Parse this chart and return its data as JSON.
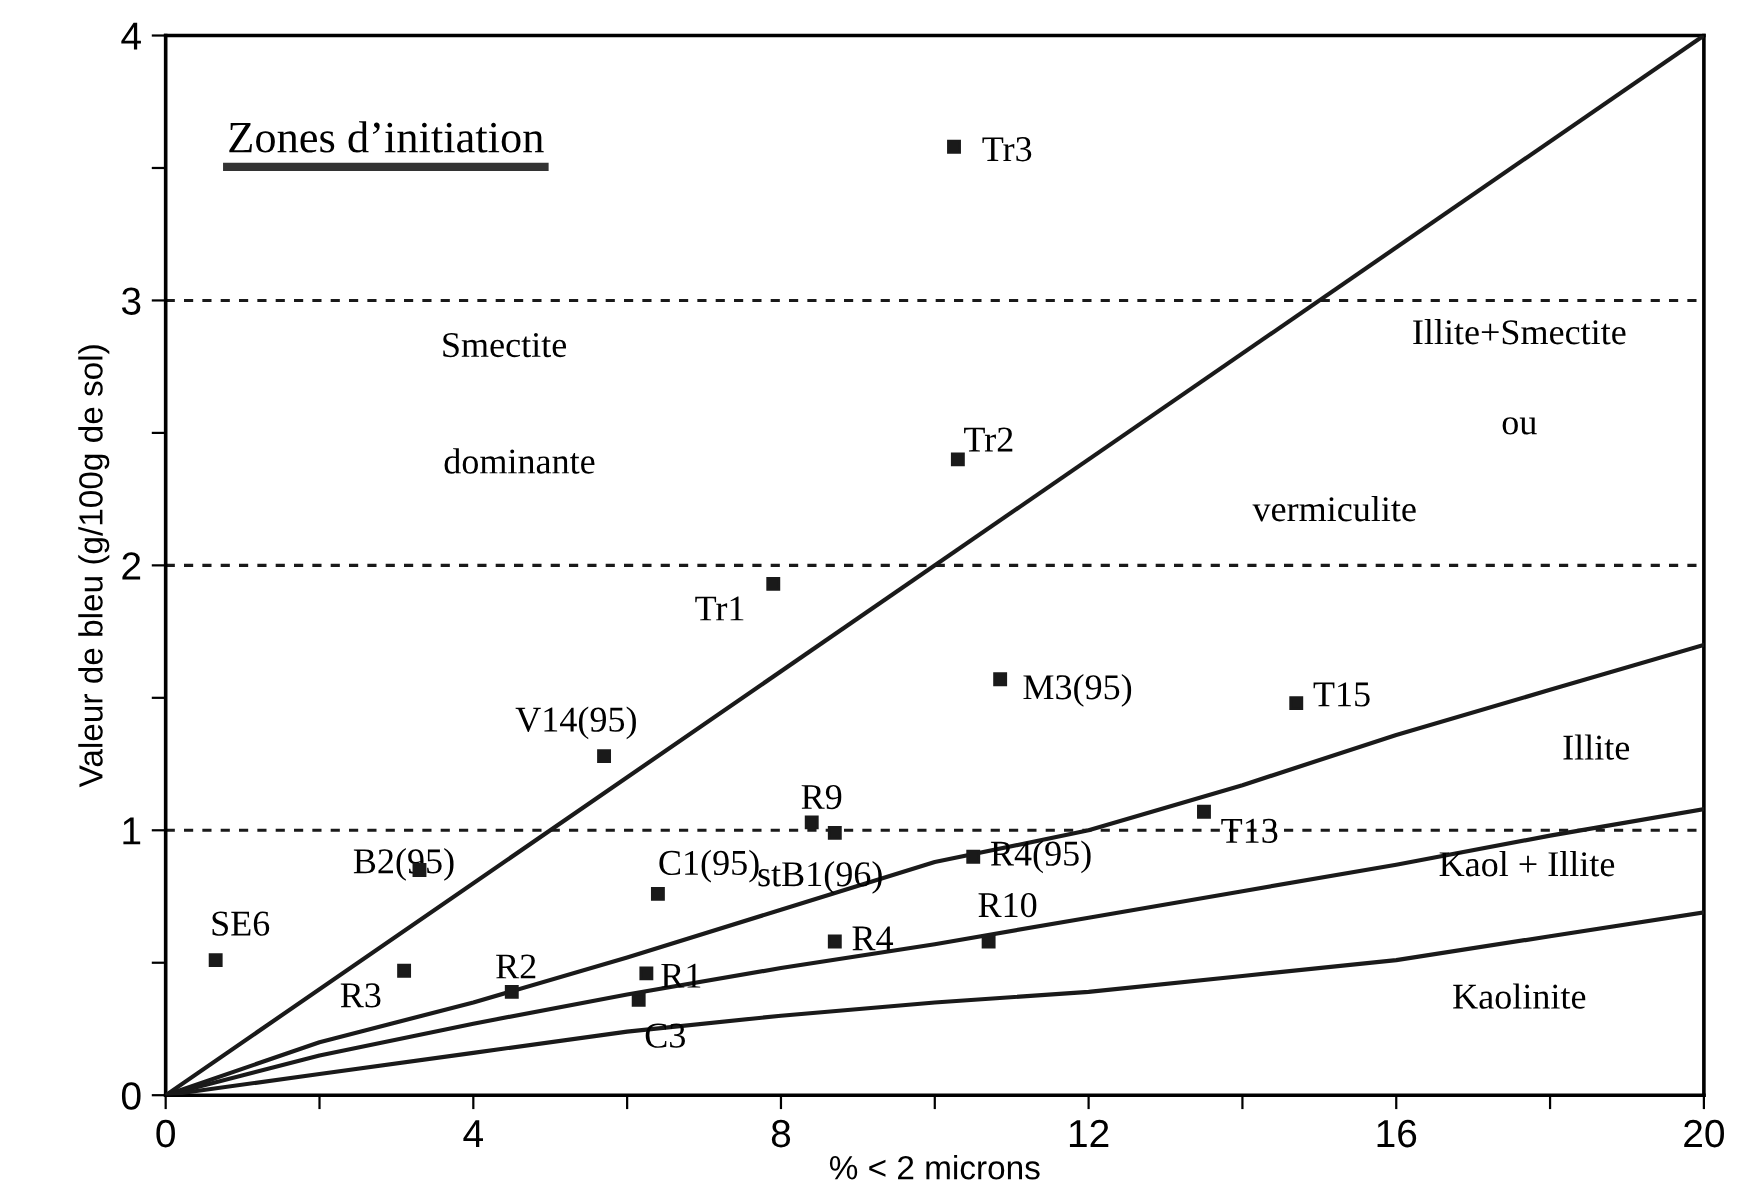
{
  "chart_data": {
    "type": "scatter",
    "xlabel": "% < 2 microns",
    "ylabel": "Valeur de bleu (g/100g de sol)",
    "xlim": [
      0,
      20
    ],
    "ylim": [
      0,
      4
    ],
    "xticks": [
      0,
      {
        "value": 2,
        "label": null
      },
      4,
      {
        "value": 6,
        "label": null
      },
      8,
      {
        "value": 10,
        "label": null
      },
      12,
      {
        "value": 14,
        "label": null
      },
      16,
      {
        "value": 18,
        "label": null
      },
      20
    ],
    "yticks": [
      0,
      {
        "value": 0.5,
        "label": null
      },
      1,
      {
        "value": 1.5,
        "label": null
      },
      2,
      {
        "value": 2.5,
        "label": null
      },
      3,
      {
        "value": 3.5,
        "label": null
      },
      4
    ],
    "grid": false,
    "series": [
      {
        "color": "#1a1a1a",
        "marker": "square",
        "x": [
          0.65,
          3.1,
          3.3,
          4.5,
          5.7,
          6.25,
          6.15,
          6.4,
          7.9,
          8.4,
          8.7,
          8.7,
          10.5,
          10.7,
          10.85,
          14.7,
          13.5,
          10.3,
          10.25
        ],
        "values": [
          0.51,
          0.47,
          0.85,
          0.39,
          1.28,
          0.46,
          0.36,
          0.76,
          1.93,
          1.03,
          0.99,
          0.58,
          0.9,
          0.58,
          1.57,
          1.48,
          1.07,
          2.4,
          3.58
        ]
      },
      {
        "type": "line",
        "color": "#1a1a1a",
        "line_style": "solid",
        "x": [
          0,
          20
        ],
        "values": [
          0,
          4
        ]
      },
      {
        "type": "line",
        "color": "#1a1a1a",
        "line_style": "solid",
        "x": [
          0,
          2,
          4,
          6,
          8,
          10,
          12,
          14,
          16,
          18,
          20
        ],
        "values": [
          0,
          0.2,
          0.35,
          0.52,
          0.7,
          0.88,
          1.0,
          1.17,
          1.36,
          1.53,
          1.7
        ]
      },
      {
        "type": "line",
        "color": "#1a1a1a",
        "line_style": "solid",
        "x": [
          0,
          2,
          4,
          6,
          8,
          10,
          12,
          14,
          16,
          18,
          20
        ],
        "values": [
          0,
          0.15,
          0.27,
          0.38,
          0.48,
          0.57,
          0.67,
          0.77,
          0.87,
          0.98,
          1.08
        ]
      },
      {
        "type": "line",
        "color": "#1a1a1a",
        "line_style": "solid",
        "x": [
          0,
          2,
          4,
          6,
          8,
          10,
          12,
          14,
          16,
          18,
          20
        ],
        "values": [
          0,
          0.08,
          0.16,
          0.24,
          0.3,
          0.35,
          0.39,
          0.45,
          0.51,
          0.6,
          0.69
        ]
      }
    ],
    "ref_lines": [
      {
        "axis": "y",
        "value": 1,
        "color": "#1a1a1a",
        "line_style": "dashed"
      },
      {
        "axis": "y",
        "value": 2,
        "color": "#1a1a1a",
        "line_style": "dashed"
      },
      {
        "axis": "y",
        "value": 3,
        "color": "#1a1a1a",
        "line_style": "dashed"
      }
    ],
    "annotations": [
      {
        "text": "SE6",
        "x": 0.65,
        "y": 0.51
      },
      {
        "text": "R3",
        "x": 3.1,
        "y": 0.47
      },
      {
        "text": "B2(95)",
        "x": 3.3,
        "y": 0.85
      },
      {
        "text": "R2",
        "x": 4.5,
        "y": 0.39
      },
      {
        "text": "V14(95)",
        "x": 5.7,
        "y": 1.28
      },
      {
        "text": "R1",
        "x": 6.25,
        "y": 0.46
      },
      {
        "text": "C3",
        "x": 6.15,
        "y": 0.36
      },
      {
        "text": "C1(95)",
        "x": 6.4,
        "y": 0.76
      },
      {
        "text": "Tr1",
        "x": 7.9,
        "y": 1.93
      },
      {
        "text": "R9",
        "x": 8.4,
        "y": 1.03
      },
      {
        "text": "stB1(96)",
        "x": 8.7,
        "y": 0.99
      },
      {
        "text": "R4",
        "x": 8.7,
        "y": 0.58
      },
      {
        "text": "R4(95)",
        "x": 10.5,
        "y": 0.9
      },
      {
        "text": "R10",
        "x": 10.7,
        "y": 0.58
      },
      {
        "text": "M3(95)",
        "x": 10.85,
        "y": 1.57
      },
      {
        "text": "T15",
        "x": 14.7,
        "y": 1.48
      },
      {
        "text": "T13",
        "x": 13.5,
        "y": 1.07
      },
      {
        "text": "Tr2",
        "x": 10.3,
        "y": 2.4
      },
      {
        "text": "Tr3",
        "x": 10.25,
        "y": 3.58
      },
      "Zones d’initiation",
      "Smectite",
      "dominante",
      "Illite+Smectite",
      "ou",
      "vermiculite",
      "Illite",
      "Kaol + Illite",
      "Kaolinite"
    ]
  }
}
